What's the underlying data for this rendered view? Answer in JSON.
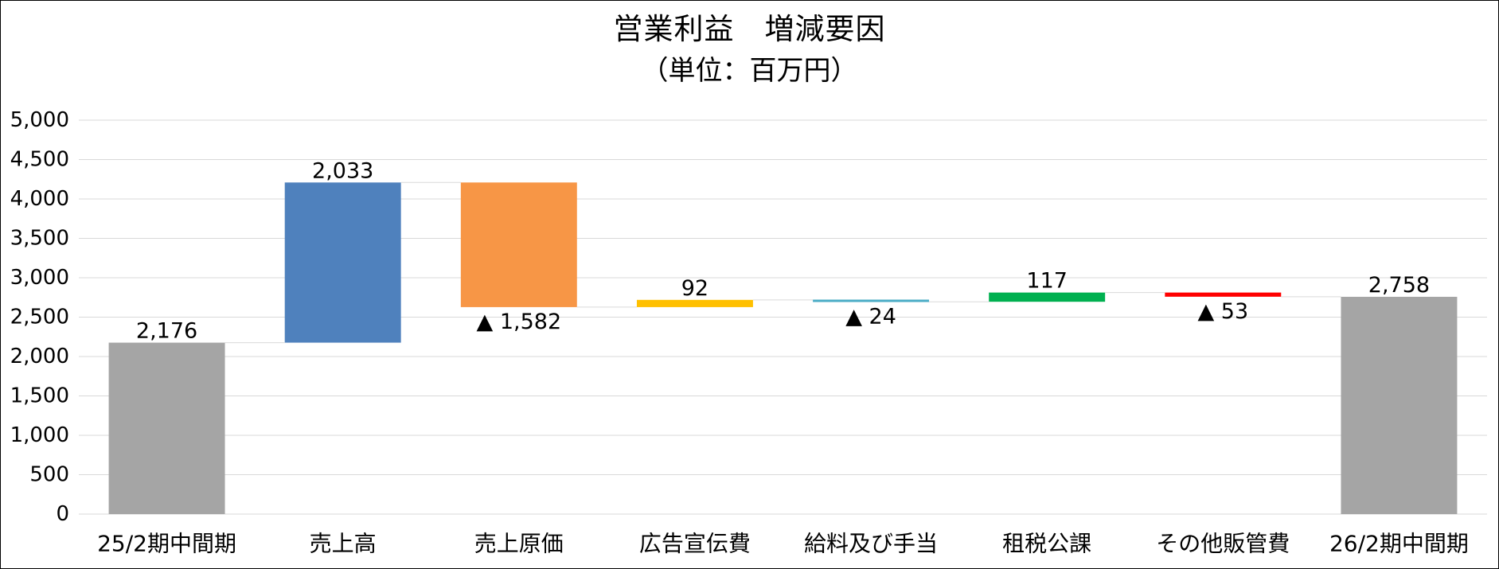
{
  "chart_data": {
    "type": "bar",
    "subtype": "waterfall",
    "title": "営業利益　増減要因",
    "subtitle": "（単位：百万円）",
    "xlabel": "",
    "ylabel": "",
    "ylim": [
      0,
      5000
    ],
    "ytick_step": 500,
    "yticks": [
      "0",
      "500",
      "1,000",
      "1,500",
      "2,000",
      "2,500",
      "3,000",
      "3,500",
      "4,000",
      "4,500",
      "5,000"
    ],
    "grid": true,
    "legend": "none",
    "categories": [
      "25/2期中間期",
      "売上高",
      "売上原価",
      "広告宣伝費",
      "給料及び手当",
      "租税公課",
      "その他販管費",
      "26/2期中間期"
    ],
    "values": [
      2176,
      2033,
      -1582,
      92,
      -24,
      117,
      -53,
      2758
    ],
    "kinds": [
      "total",
      "delta",
      "delta",
      "delta",
      "delta",
      "delta",
      "delta",
      "total"
    ],
    "data_labels": [
      "2,176",
      "2,033",
      "▲ 1,582",
      "92",
      "▲ 24",
      "117",
      "▲ 53",
      "2,758"
    ],
    "colors": [
      "#A5A5A5",
      "#4F81BD",
      "#F79646",
      "#FFC000",
      "#4BACC6",
      "#00B050",
      "#FF0000",
      "#A5A5A5"
    ],
    "gridline_color": "#D9D9D9",
    "connector_color": "#D9D9D9"
  }
}
